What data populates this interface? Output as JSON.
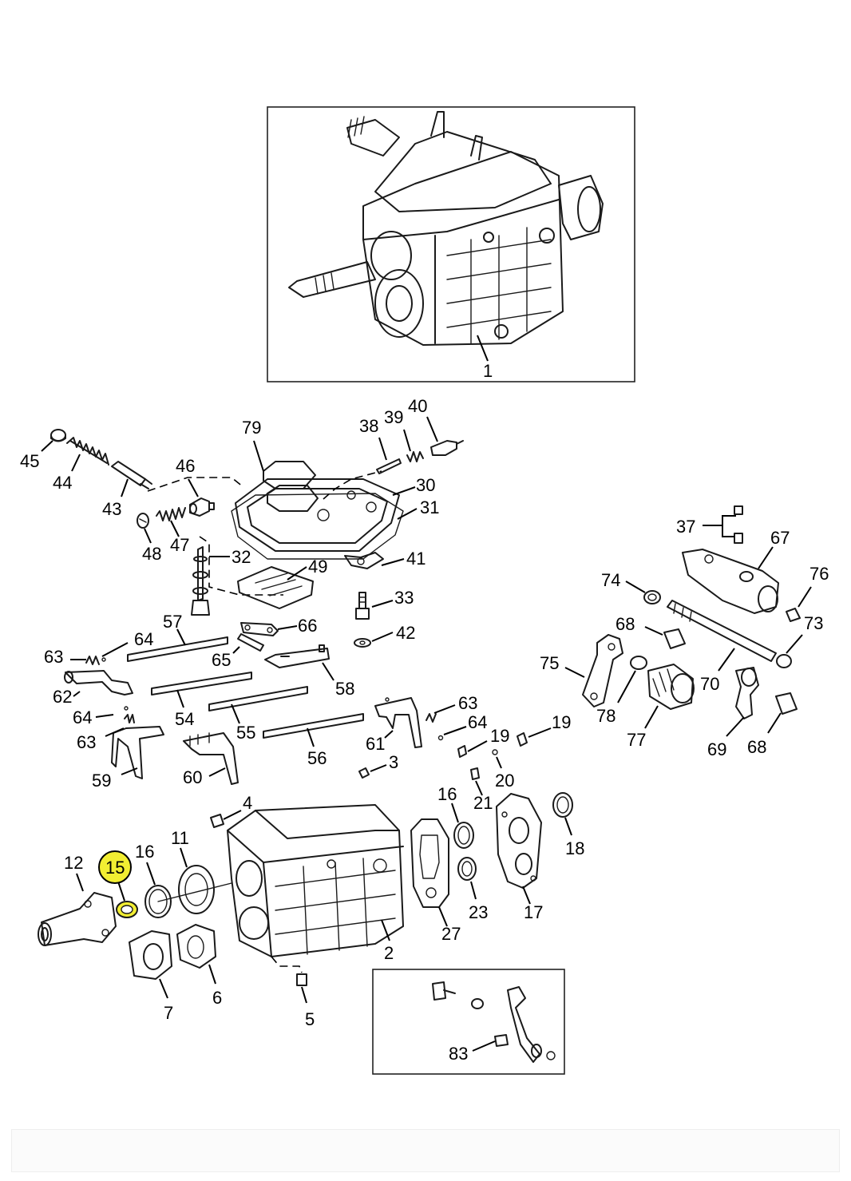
{
  "labels": {
    "p1": "1",
    "p2": "2",
    "p3": "3",
    "p4": "4",
    "p5": "5",
    "p6": "6",
    "p7": "7",
    "p11": "11",
    "p12": "12",
    "p15": "15",
    "p16a": "16",
    "p16b": "16",
    "p17": "17",
    "p18": "18",
    "p19a": "19",
    "p19b": "19",
    "p20": "20",
    "p21": "21",
    "p23": "23",
    "p27": "27",
    "p30": "30",
    "p31": "31",
    "p32": "32",
    "p33": "33",
    "p37": "37",
    "p38": "38",
    "p39": "39",
    "p40": "40",
    "p41": "41",
    "p42": "42",
    "p43": "43",
    "p44": "44",
    "p45": "45",
    "p46": "46",
    "p47": "47",
    "p48": "48",
    "p49": "49",
    "p54": "54",
    "p55": "55",
    "p56": "56",
    "p57": "57",
    "p58": "58",
    "p59": "59",
    "p60": "60",
    "p61": "61",
    "p62": "62",
    "p63a": "63",
    "p63b": "63",
    "p63c": "63",
    "p64a": "64",
    "p64b": "64",
    "p64c": "64",
    "p65": "65",
    "p66": "66",
    "p67": "67",
    "p68a": "68",
    "p68b": "68",
    "p69": "69",
    "p70": "70",
    "p73": "73",
    "p74": "74",
    "p75": "75",
    "p76": "76",
    "p77": "77",
    "p78": "78",
    "p79": "79",
    "p83": "83"
  },
  "highlight": {
    "part": "15",
    "color": "#f2ee32"
  }
}
